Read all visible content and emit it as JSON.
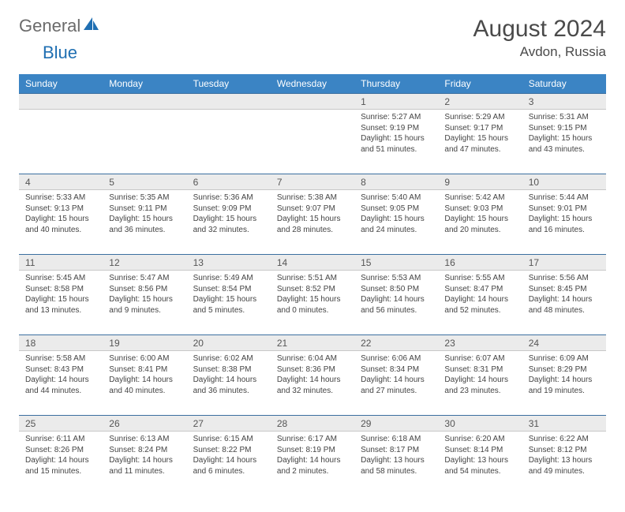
{
  "brand": {
    "part1": "General",
    "part2": "Blue"
  },
  "title": "August 2024",
  "location": "Avdon, Russia",
  "colors": {
    "header_bg": "#3b84c4",
    "header_fg": "#ffffff",
    "daynum_bg": "#ebebeb",
    "rule": "#3b6fa0",
    "text": "#444444",
    "logo_gray": "#6b6b6b",
    "logo_blue": "#1f6fb2"
  },
  "weekdays": [
    "Sunday",
    "Monday",
    "Tuesday",
    "Wednesday",
    "Thursday",
    "Friday",
    "Saturday"
  ],
  "weeks": [
    [
      {
        "n": "",
        "sr": "",
        "ss": "",
        "dl": ""
      },
      {
        "n": "",
        "sr": "",
        "ss": "",
        "dl": ""
      },
      {
        "n": "",
        "sr": "",
        "ss": "",
        "dl": ""
      },
      {
        "n": "",
        "sr": "",
        "ss": "",
        "dl": ""
      },
      {
        "n": "1",
        "sr": "5:27 AM",
        "ss": "9:19 PM",
        "dl": "15 hours and 51 minutes."
      },
      {
        "n": "2",
        "sr": "5:29 AM",
        "ss": "9:17 PM",
        "dl": "15 hours and 47 minutes."
      },
      {
        "n": "3",
        "sr": "5:31 AM",
        "ss": "9:15 PM",
        "dl": "15 hours and 43 minutes."
      }
    ],
    [
      {
        "n": "4",
        "sr": "5:33 AM",
        "ss": "9:13 PM",
        "dl": "15 hours and 40 minutes."
      },
      {
        "n": "5",
        "sr": "5:35 AM",
        "ss": "9:11 PM",
        "dl": "15 hours and 36 minutes."
      },
      {
        "n": "6",
        "sr": "5:36 AM",
        "ss": "9:09 PM",
        "dl": "15 hours and 32 minutes."
      },
      {
        "n": "7",
        "sr": "5:38 AM",
        "ss": "9:07 PM",
        "dl": "15 hours and 28 minutes."
      },
      {
        "n": "8",
        "sr": "5:40 AM",
        "ss": "9:05 PM",
        "dl": "15 hours and 24 minutes."
      },
      {
        "n": "9",
        "sr": "5:42 AM",
        "ss": "9:03 PM",
        "dl": "15 hours and 20 minutes."
      },
      {
        "n": "10",
        "sr": "5:44 AM",
        "ss": "9:01 PM",
        "dl": "15 hours and 16 minutes."
      }
    ],
    [
      {
        "n": "11",
        "sr": "5:45 AM",
        "ss": "8:58 PM",
        "dl": "15 hours and 13 minutes."
      },
      {
        "n": "12",
        "sr": "5:47 AM",
        "ss": "8:56 PM",
        "dl": "15 hours and 9 minutes."
      },
      {
        "n": "13",
        "sr": "5:49 AM",
        "ss": "8:54 PM",
        "dl": "15 hours and 5 minutes."
      },
      {
        "n": "14",
        "sr": "5:51 AM",
        "ss": "8:52 PM",
        "dl": "15 hours and 0 minutes."
      },
      {
        "n": "15",
        "sr": "5:53 AM",
        "ss": "8:50 PM",
        "dl": "14 hours and 56 minutes."
      },
      {
        "n": "16",
        "sr": "5:55 AM",
        "ss": "8:47 PM",
        "dl": "14 hours and 52 minutes."
      },
      {
        "n": "17",
        "sr": "5:56 AM",
        "ss": "8:45 PM",
        "dl": "14 hours and 48 minutes."
      }
    ],
    [
      {
        "n": "18",
        "sr": "5:58 AM",
        "ss": "8:43 PM",
        "dl": "14 hours and 44 minutes."
      },
      {
        "n": "19",
        "sr": "6:00 AM",
        "ss": "8:41 PM",
        "dl": "14 hours and 40 minutes."
      },
      {
        "n": "20",
        "sr": "6:02 AM",
        "ss": "8:38 PM",
        "dl": "14 hours and 36 minutes."
      },
      {
        "n": "21",
        "sr": "6:04 AM",
        "ss": "8:36 PM",
        "dl": "14 hours and 32 minutes."
      },
      {
        "n": "22",
        "sr": "6:06 AM",
        "ss": "8:34 PM",
        "dl": "14 hours and 27 minutes."
      },
      {
        "n": "23",
        "sr": "6:07 AM",
        "ss": "8:31 PM",
        "dl": "14 hours and 23 minutes."
      },
      {
        "n": "24",
        "sr": "6:09 AM",
        "ss": "8:29 PM",
        "dl": "14 hours and 19 minutes."
      }
    ],
    [
      {
        "n": "25",
        "sr": "6:11 AM",
        "ss": "8:26 PM",
        "dl": "14 hours and 15 minutes."
      },
      {
        "n": "26",
        "sr": "6:13 AM",
        "ss": "8:24 PM",
        "dl": "14 hours and 11 minutes."
      },
      {
        "n": "27",
        "sr": "6:15 AM",
        "ss": "8:22 PM",
        "dl": "14 hours and 6 minutes."
      },
      {
        "n": "28",
        "sr": "6:17 AM",
        "ss": "8:19 PM",
        "dl": "14 hours and 2 minutes."
      },
      {
        "n": "29",
        "sr": "6:18 AM",
        "ss": "8:17 PM",
        "dl": "13 hours and 58 minutes."
      },
      {
        "n": "30",
        "sr": "6:20 AM",
        "ss": "8:14 PM",
        "dl": "13 hours and 54 minutes."
      },
      {
        "n": "31",
        "sr": "6:22 AM",
        "ss": "8:12 PM",
        "dl": "13 hours and 49 minutes."
      }
    ]
  ],
  "labels": {
    "sunrise": "Sunrise:",
    "sunset": "Sunset:",
    "daylight": "Daylight:"
  }
}
